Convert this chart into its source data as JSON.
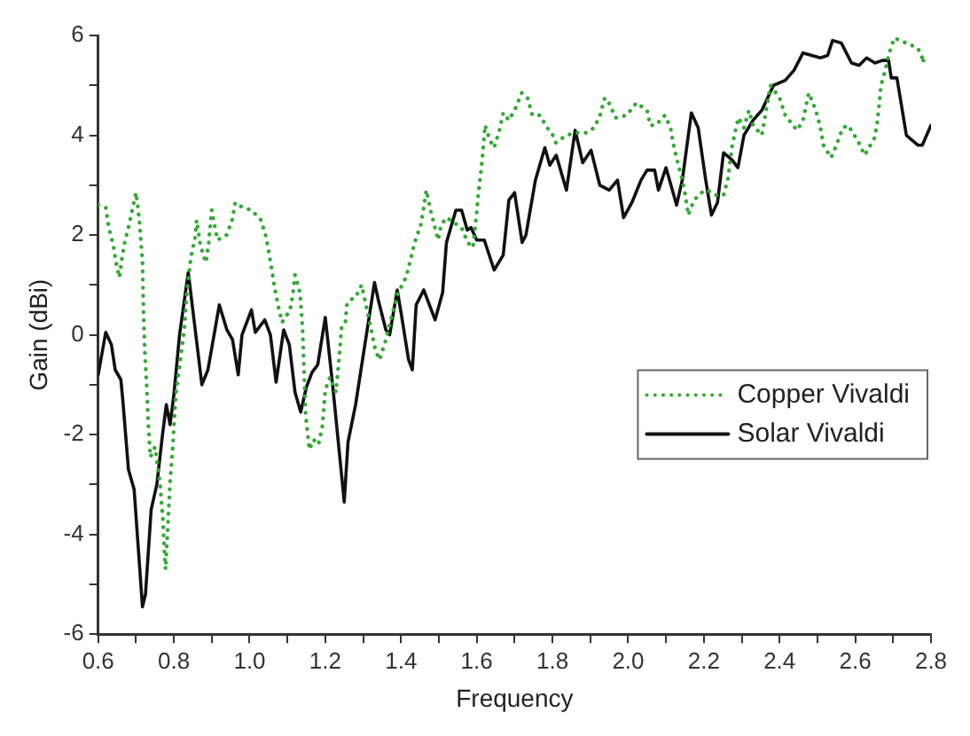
{
  "chart_data": {
    "type": "line",
    "xlabel": "Frequency",
    "ylabel": "Gain (dBi)",
    "xlim": [
      0.6,
      2.8
    ],
    "ylim": [
      -6,
      6
    ],
    "xticks": [
      0.6,
      {
        "value": 0.7,
        "label": null
      },
      0.8,
      {
        "value": 0.9,
        "label": null
      },
      {
        "value": 1,
        "label": "1.0"
      },
      {
        "value": 1.1,
        "label": null
      },
      1.2,
      {
        "value": 1.3,
        "label": null
      },
      1.4,
      {
        "value": 1.5,
        "label": null
      },
      1.6,
      {
        "value": 1.7,
        "label": null
      },
      1.8,
      {
        "value": 1.9,
        "label": null
      },
      {
        "value": 2,
        "label": "2.0"
      },
      {
        "value": 2.1,
        "label": null
      },
      2.2,
      {
        "value": 2.3,
        "label": null
      },
      2.4,
      {
        "value": 2.5,
        "label": null
      },
      2.6,
      {
        "value": 2.7,
        "label": null
      },
      2.8
    ],
    "yticks": [
      -6,
      {
        "value": -5,
        "label": null
      },
      -4,
      {
        "value": -3,
        "label": null
      },
      -2,
      {
        "value": -1,
        "label": null
      },
      0,
      {
        "value": 1,
        "label": null
      },
      2,
      {
        "value": 3,
        "label": null
      },
      4,
      {
        "value": 5,
        "label": null
      },
      6
    ],
    "grid": false,
    "legend": "right",
    "marker": "none",
    "series": [
      {
        "name": "Copper Vivaldi",
        "color": "#33aa33",
        "line_style": "dotted",
        "x": [
          0.6,
          0.62,
          0.628,
          0.64,
          0.647,
          0.656,
          0.662,
          0.67,
          0.68,
          0.69,
          0.7,
          0.705,
          0.71,
          0.713,
          0.717,
          0.718,
          0.72,
          0.723,
          0.728,
          0.732,
          0.738,
          0.75,
          0.763,
          0.771,
          0.775,
          0.778,
          0.785,
          0.79,
          0.797,
          0.805,
          0.812,
          0.828,
          0.833,
          0.845,
          0.856,
          0.86,
          0.869,
          0.877,
          0.885,
          0.892,
          0.9,
          0.915,
          0.939,
          0.954,
          0.962,
          0.982,
          1.005,
          1.03,
          1.044,
          1.06,
          1.066,
          1.075,
          1.086,
          1.107,
          1.115,
          1.12,
          1.133,
          1.137,
          1.14,
          1.148,
          1.158,
          1.169,
          1.182,
          1.192,
          1.2,
          1.212,
          1.228,
          1.235,
          1.243,
          1.253,
          1.257,
          1.265,
          1.28,
          1.296,
          1.32,
          1.332,
          1.343,
          1.358,
          1.39,
          1.413,
          1.425,
          1.436,
          1.452,
          1.46,
          1.467,
          1.478,
          1.498,
          1.506,
          1.52,
          1.56,
          1.576,
          1.59,
          1.6,
          1.604,
          1.61,
          1.615,
          1.622,
          1.635,
          1.646,
          1.66,
          1.67,
          1.685,
          1.703,
          1.719,
          1.734,
          1.747,
          1.767,
          1.786,
          1.798,
          1.809,
          1.837,
          1.863,
          1.891,
          1.91,
          1.926,
          1.938,
          1.949,
          1.967,
          1.996,
          2.022,
          2.05,
          2.058,
          2.073,
          2.097,
          2.112,
          2.12,
          2.131,
          2.143,
          2.151,
          2.159,
          2.174,
          2.194,
          2.21,
          2.229,
          2.252,
          2.263,
          2.275,
          2.291,
          2.306,
          2.319,
          2.33,
          2.353,
          2.376,
          2.4,
          2.415,
          2.446,
          2.462,
          2.477,
          2.496,
          2.508,
          2.516,
          2.536,
          2.55,
          2.567,
          2.581,
          2.606,
          2.625,
          2.651,
          2.659,
          2.668,
          2.679,
          2.69,
          2.703,
          2.765,
          2.78
        ],
        "values": [
          2.6,
          2.55,
          2.15,
          1.8,
          1.45,
          1.15,
          1.5,
          1.85,
          2.15,
          2.5,
          2.85,
          2.55,
          2.2,
          1.85,
          1.5,
          1.1,
          0.4,
          -0.3,
          -1,
          -1.75,
          -2.45,
          -2.25,
          -2.95,
          -3.7,
          -4.35,
          -4.7,
          -3.7,
          -2.95,
          -2.25,
          -1.2,
          -0.8,
          0.15,
          0.75,
          1.55,
          1.95,
          2.3,
          1.85,
          1.6,
          1.45,
          1.85,
          2.5,
          1.9,
          2,
          2.3,
          2.65,
          2.55,
          2.5,
          2.3,
          1.95,
          1.25,
          0.95,
          0.6,
          0.25,
          0.5,
          0.85,
          1.2,
          0.85,
          0.45,
          0.1,
          -1.6,
          -2.3,
          -2.1,
          -2.2,
          -1.85,
          -1.1,
          -0.85,
          -1.15,
          -0.6,
          0.15,
          0.25,
          0.6,
          0.7,
          0.75,
          1,
          0.15,
          -0.3,
          -0.5,
          -0.15,
          0.8,
          1.15,
          1.5,
          1.85,
          2.2,
          2.55,
          2.9,
          2.5,
          1.9,
          2.2,
          2.35,
          2.15,
          1.85,
          1.75,
          2.45,
          2.8,
          3.2,
          3.55,
          4.2,
          3.9,
          3.75,
          4.1,
          4.45,
          4.3,
          4.55,
          4.85,
          4.75,
          4.4,
          4.4,
          4.15,
          4.05,
          3.85,
          4,
          4.05,
          4.05,
          4.15,
          4.4,
          4.75,
          4.65,
          4.35,
          4.4,
          4.65,
          4.5,
          4.2,
          4.2,
          4.4,
          4.15,
          3.8,
          3.45,
          3.1,
          2.8,
          2.4,
          2.7,
          2.85,
          2.9,
          2.8,
          2.8,
          3.1,
          3.8,
          4.35,
          4.15,
          4.5,
          4.2,
          4,
          5,
          4.75,
          4.4,
          4.1,
          4.3,
          4.85,
          4.5,
          4.15,
          3.8,
          3.55,
          3.8,
          4.15,
          4.2,
          3.9,
          3.6,
          3.95,
          4.3,
          5,
          5.3,
          5.65,
          5.95,
          5.75,
          5.5
        ]
      },
      {
        "name": "Solar Vivaldi",
        "color": "#111111",
        "line_style": "solid",
        "x": [
          0.6,
          0.62,
          0.635,
          0.645,
          0.66,
          0.665,
          0.68,
          0.695,
          0.717,
          0.725,
          0.74,
          0.755,
          0.77,
          0.78,
          0.79,
          0.8,
          0.815,
          0.838,
          0.858,
          0.874,
          0.89,
          0.92,
          0.94,
          0.955,
          0.97,
          0.98,
          1.005,
          1.015,
          1.04,
          1.055,
          1.07,
          1.09,
          1.105,
          1.12,
          1.135,
          1.15,
          1.165,
          1.18,
          1.2,
          1.22,
          1.25,
          1.26,
          1.28,
          1.33,
          1.34,
          1.36,
          1.37,
          1.39,
          1.4,
          1.42,
          1.43,
          1.44,
          1.46,
          1.49,
          1.51,
          1.52,
          1.545,
          1.56,
          1.575,
          1.585,
          1.6,
          1.62,
          1.646,
          1.67,
          1.685,
          1.7,
          1.72,
          1.73,
          1.755,
          1.78,
          1.793,
          1.81,
          1.837,
          1.86,
          1.88,
          1.902,
          1.925,
          1.95,
          1.972,
          1.988,
          2.01,
          2.034,
          2.05,
          2.07,
          2.08,
          2.1,
          2.128,
          2.143,
          2.167,
          2.185,
          2.205,
          2.22,
          2.236,
          2.252,
          2.275,
          2.29,
          2.306,
          2.33,
          2.353,
          2.384,
          2.415,
          2.438,
          2.462,
          2.485,
          2.508,
          2.527,
          2.54,
          2.563,
          2.59,
          2.61,
          2.63,
          2.652,
          2.672,
          2.688,
          2.695,
          2.71,
          2.735,
          2.766,
          2.777,
          2.8
        ],
        "values": [
          -0.8,
          0.05,
          -0.2,
          -0.7,
          -0.9,
          -1.3,
          -2.7,
          -3.1,
          -5.45,
          -5.2,
          -3.5,
          -3,
          -2,
          -1.4,
          -1.8,
          -1.2,
          0,
          1.25,
          0,
          -1,
          -0.7,
          0.6,
          0.1,
          -0.1,
          -0.8,
          0,
          0.5,
          0.05,
          0.3,
          0,
          -0.95,
          0.1,
          -0.2,
          -1.15,
          -1.55,
          -1.05,
          -0.75,
          -0.6,
          0.35,
          -1.05,
          -3.35,
          -2.15,
          -1.4,
          1.05,
          0.7,
          0.1,
          0,
          0.9,
          0.45,
          -0.5,
          -0.7,
          0.6,
          0.9,
          0.3,
          0.85,
          1.85,
          2.5,
          2.5,
          2.1,
          2.15,
          1.9,
          1.9,
          1.3,
          1.6,
          2.7,
          2.85,
          1.85,
          2,
          3.1,
          3.75,
          3.4,
          3.6,
          2.9,
          4.1,
          3.45,
          3.7,
          3,
          2.9,
          3.1,
          2.35,
          2.65,
          3.1,
          3.3,
          3.3,
          2.9,
          3.35,
          2.6,
          3.1,
          4.45,
          4.15,
          3.1,
          2.4,
          2.65,
          3.65,
          3.5,
          3.35,
          4,
          4.3,
          4.5,
          5,
          5.1,
          5.3,
          5.65,
          5.6,
          5.55,
          5.6,
          5.9,
          5.85,
          5.45,
          5.4,
          5.55,
          5.45,
          5.5,
          5.5,
          5.15,
          5.15,
          4,
          3.8,
          3.8,
          4.2
        ]
      }
    ]
  }
}
